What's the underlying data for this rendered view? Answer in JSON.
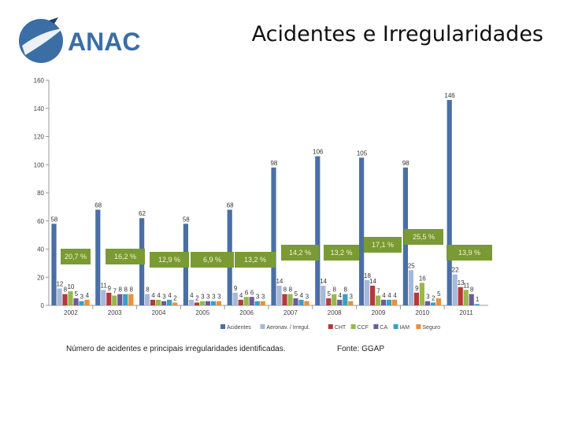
{
  "brand": {
    "name": "ANAC",
    "primary_color": "#3a6ea5",
    "accent_color": "#1d3f6e"
  },
  "slide": {
    "title": "Acidentes e Irregularidades"
  },
  "captions": {
    "description": "Número de acidentes e principais irregularidades identificadas.",
    "source": "Fonte: GGAP"
  },
  "callouts": [
    "20,7 %",
    "16,2 %",
    "12,9 %",
    "6,9 %",
    "13,2 %",
    "14,2 %",
    "13,2 %",
    "17,1 %",
    "25,5 %",
    "13,9 %"
  ],
  "chart_data": {
    "type": "bar",
    "title": "",
    "xlabel": "",
    "ylabel": "",
    "ylim": [
      0,
      160
    ],
    "yticks": [
      0,
      20,
      40,
      60,
      80,
      100,
      120,
      140,
      160
    ],
    "grid": false,
    "legend_position": "bottom",
    "categories": [
      "2002",
      "2003",
      "2004",
      "2005",
      "2006",
      "2007",
      "2008",
      "2009",
      "2010",
      "2011"
    ],
    "series": [
      {
        "name": "Acidentes",
        "color": "#4a6fa5",
        "values": [
          58,
          68,
          62,
          58,
          68,
          98,
          106,
          105,
          98,
          146
        ]
      },
      {
        "name": "Aeronav. / Irregul.",
        "color": "#a8b8d8",
        "values": [
          12,
          11,
          8,
          4,
          9,
          14,
          14,
          18,
          25,
          22
        ]
      },
      {
        "name": "CHT",
        "color": "#b23a3a",
        "values": [
          8,
          9,
          4,
          2,
          4,
          8,
          5,
          14,
          9,
          13
        ]
      },
      {
        "name": "CCF",
        "color": "#98b84a",
        "values": [
          10,
          7,
          4,
          3,
          6,
          8,
          8,
          7,
          16,
          11
        ]
      },
      {
        "name": "CA",
        "color": "#6b5a9a",
        "values": [
          5,
          8,
          3,
          3,
          6,
          5,
          4,
          4,
          3,
          8
        ]
      },
      {
        "name": "IAM",
        "color": "#3aa0c0",
        "values": [
          3,
          8,
          4,
          3,
          3,
          4,
          8,
          4,
          2,
          1
        ]
      },
      {
        "name": "Seguro",
        "color": "#e8903a",
        "values": [
          4,
          8,
          2,
          3,
          3,
          3,
          3,
          4,
          5,
          0
        ]
      }
    ],
    "value_labels": [
      [
        "58",
        "12",
        "8",
        "10",
        "5",
        "3",
        "4"
      ],
      [
        "68",
        "11",
        "9",
        "7",
        "8",
        "8",
        "8"
      ],
      [
        "62",
        "8",
        "4",
        "4",
        "3",
        "4",
        "2"
      ],
      [
        "58",
        "4",
        "2",
        "3",
        "3",
        "3",
        "3"
      ],
      [
        "68",
        "9",
        "4",
        "6",
        "6",
        "3",
        "3"
      ],
      [
        "98",
        "14",
        "8",
        "8",
        "5",
        "4",
        "3"
      ],
      [
        "106",
        "14",
        "5",
        "8",
        "4",
        "8",
        "3"
      ],
      [
        "105",
        "18",
        "14",
        "7",
        "4",
        "4",
        "4"
      ],
      [
        "98",
        "25",
        "9",
        "16",
        "3",
        "2",
        "5"
      ],
      [
        "146",
        "22",
        "13",
        "11",
        "8",
        "1",
        ""
      ]
    ]
  }
}
